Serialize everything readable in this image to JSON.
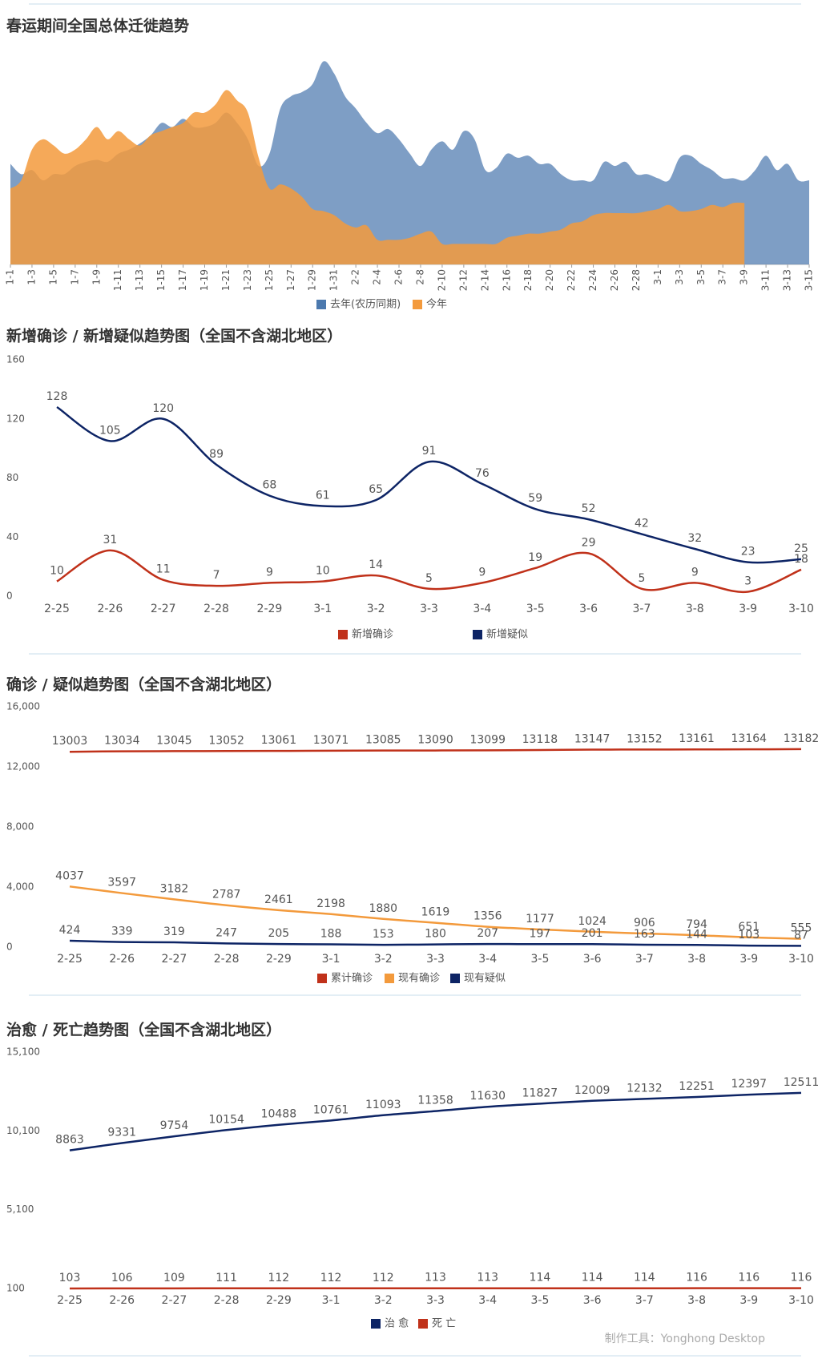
{
  "chart_data": [
    {
      "type": "area",
      "title": "春运期间全国总体迁徙趋势",
      "legend": "bottom",
      "data_labels": false,
      "categories": [
        "1-1",
        null,
        "1-3",
        null,
        "1-5",
        null,
        "1-7",
        null,
        "1-9",
        null,
        "1-11",
        null,
        "1-13",
        null,
        "1-15",
        null,
        "1-17",
        null,
        "1-19",
        null,
        "1-21",
        null,
        "1-23",
        null,
        "1-25",
        null,
        "1-27",
        null,
        "1-29",
        null,
        "1-31",
        null,
        "2-2",
        null,
        "2-4",
        null,
        "2-6",
        null,
        "2-8",
        null,
        "2-10",
        null,
        "2-12",
        null,
        "2-14",
        null,
        "2-16",
        null,
        "2-18",
        null,
        "2-20",
        null,
        "2-22",
        null,
        "2-24",
        null,
        "2-26",
        null,
        "2-28",
        null,
        "3-1",
        null,
        "3-3",
        null,
        "3-5",
        null,
        "3-7",
        null,
        "3-9",
        null,
        "3-11",
        null,
        "3-13",
        null,
        "3-15"
      ],
      "ylim": [
        0,
        100
      ],
      "series": [
        {
          "name": "去年(农历同期)",
          "color": "#4c79ae",
          "values": [
            49,
            44,
            46,
            41,
            44,
            44,
            48,
            50,
            51,
            50,
            54,
            56,
            59,
            63,
            69,
            67,
            71,
            67,
            67,
            69,
            74,
            69,
            61,
            48,
            54,
            76,
            82,
            84,
            88,
            99,
            93,
            82,
            76,
            69,
            64,
            66,
            61,
            54,
            48,
            56,
            60,
            56,
            65,
            61,
            46,
            47,
            54,
            52,
            53,
            49,
            49,
            44,
            41,
            41,
            41,
            50,
            48,
            50,
            44,
            44,
            42,
            41,
            52,
            53,
            49,
            46,
            42,
            42,
            41,
            46,
            53,
            46,
            49,
            41,
            41
          ]
        },
        {
          "name": "今年",
          "color": "#f39a3c",
          "values": [
            37,
            41,
            56,
            61,
            58,
            54,
            56,
            61,
            67,
            61,
            65,
            61,
            58,
            63,
            65,
            67,
            69,
            74,
            74,
            78,
            85,
            80,
            74,
            52,
            37,
            39,
            37,
            33,
            27,
            26,
            24,
            20,
            18,
            19,
            12,
            12,
            12,
            13,
            15,
            16,
            10,
            10,
            10,
            10,
            10,
            10,
            13,
            14,
            15,
            15,
            16,
            17,
            20,
            21,
            24,
            25,
            25,
            25,
            25,
            26,
            27,
            29,
            26,
            26,
            27,
            29,
            28,
            30,
            30,
            null,
            null,
            null,
            null,
            null,
            null
          ]
        }
      ]
    },
    {
      "type": "line",
      "title": "新增确诊 / 新增疑似趋势图（全国不含湖北地区）",
      "legend": "bottom",
      "data_labels": true,
      "categories": [
        "2-25",
        "2-26",
        "2-27",
        "2-28",
        "2-29",
        "3-1",
        "3-2",
        "3-3",
        "3-4",
        "3-5",
        "3-6",
        "3-7",
        "3-8",
        "3-9",
        "3-10"
      ],
      "ylim": [
        0,
        160
      ],
      "yticks": [
        0,
        40,
        80,
        120,
        160
      ],
      "series": [
        {
          "name": "新增确诊",
          "color": "#c0311a",
          "values": [
            10,
            31,
            11,
            7,
            9,
            10,
            14,
            5,
            9,
            19,
            29,
            5,
            9,
            3,
            18
          ]
        },
        {
          "name": "新增疑似",
          "color": "#0d2465",
          "values": [
            128,
            105,
            120,
            89,
            68,
            61,
            65,
            91,
            76,
            59,
            52,
            42,
            32,
            23,
            25
          ]
        }
      ]
    },
    {
      "type": "line",
      "title": "确诊 / 疑似趋势图（全国不含湖北地区）",
      "legend": "bottom",
      "data_labels": true,
      "categories": [
        "2-25",
        "2-26",
        "2-27",
        "2-28",
        "2-29",
        "3-1",
        "3-2",
        "3-3",
        "3-4",
        "3-5",
        "3-6",
        "3-7",
        "3-8",
        "3-9",
        "3-10"
      ],
      "ylim": [
        0,
        16000
      ],
      "yticks": [
        0,
        {
          "value": 4000,
          "label": "4,000"
        },
        {
          "value": 8000,
          "label": "8,000"
        },
        {
          "value": 12000,
          "label": "12,000"
        },
        {
          "value": 16000,
          "label": "16,000"
        }
      ],
      "series": [
        {
          "name": "累计确诊",
          "color": "#c0311a",
          "values": [
            13003,
            13034,
            13045,
            13052,
            13061,
            13071,
            13085,
            13090,
            13099,
            13118,
            13147,
            13152,
            13161,
            13164,
            13182
          ]
        },
        {
          "name": "现有确诊",
          "color": "#f39a3c",
          "values": [
            4037,
            3597,
            3182,
            2787,
            2461,
            2198,
            1880,
            1619,
            1356,
            1177,
            1024,
            906,
            794,
            651,
            555
          ]
        },
        {
          "name": "现有疑似",
          "color": "#0d2465",
          "values": [
            424,
            339,
            319,
            247,
            205,
            188,
            153,
            180,
            207,
            197,
            201,
            163,
            144,
            103,
            87
          ]
        }
      ]
    },
    {
      "type": "line",
      "title": "治愈 / 死亡趋势图（全国不含湖北地区）",
      "legend": "bottom",
      "data_labels": true,
      "categories": [
        "2-25",
        "2-26",
        "2-27",
        "2-28",
        "2-29",
        "3-1",
        "3-2",
        "3-3",
        "3-4",
        "3-5",
        "3-6",
        "3-7",
        "3-8",
        "3-9",
        "3-10"
      ],
      "ylim": [
        100,
        15100
      ],
      "yticks": [
        100,
        {
          "value": 5100,
          "label": "5,100"
        },
        {
          "value": 10100,
          "label": "10,100"
        },
        {
          "value": 15100,
          "label": "15,100"
        }
      ],
      "series": [
        {
          "name": "治 愈",
          "color": "#0d2465",
          "values": [
            8863,
            9331,
            9754,
            10154,
            10488,
            10761,
            11093,
            11358,
            11630,
            11827,
            12009,
            12132,
            12251,
            12397,
            12511
          ]
        },
        {
          "name": "死 亡",
          "color": "#c0311a",
          "values": [
            103,
            106,
            109,
            111,
            112,
            112,
            112,
            113,
            113,
            114,
            114,
            114,
            116,
            116,
            116
          ]
        }
      ]
    }
  ],
  "footer": "制作工具：Yonghong Desktop"
}
